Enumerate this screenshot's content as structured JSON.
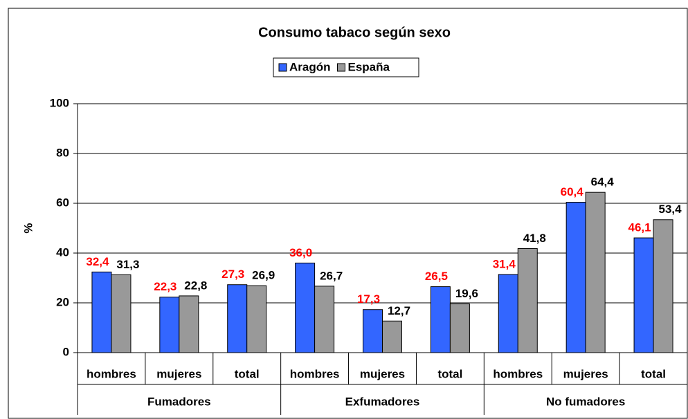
{
  "chart_data": {
    "type": "bar",
    "title": "Consumo tabaco según sexo",
    "y_label": "%",
    "categories": [
      "hombres",
      "mujeres",
      "total",
      "hombres",
      "mujeres",
      "total",
      "hombres",
      "mujeres",
      "total"
    ],
    "groups": [
      "Fumadores",
      "Exfumadores",
      "No fumadores"
    ],
    "series": [
      {
        "name": "Aragón",
        "color": "#3366ff",
        "label_color": "#ff0000",
        "values": [
          32.4,
          22.3,
          27.3,
          36.0,
          17.3,
          26.5,
          31.4,
          60.4,
          46.1
        ],
        "value_labels": [
          "32,4",
          "22,3",
          "27,3",
          "36,0",
          "17,3",
          "26,5",
          "31,4",
          "60,4",
          "46,1"
        ]
      },
      {
        "name": "España",
        "color": "#999999",
        "label_color": "#000000",
        "values": [
          31.3,
          22.8,
          26.9,
          26.7,
          12.7,
          19.6,
          41.8,
          64.4,
          53.4
        ],
        "value_labels": [
          "31,3",
          "22,8",
          "26,9",
          "26,7",
          "12,7",
          "19,6",
          "41,8",
          "64,4",
          "53,4"
        ]
      }
    ],
    "ylim": [
      0,
      100
    ],
    "yticks": [
      0,
      20,
      40,
      60,
      80,
      100
    ],
    "grid": true,
    "legend": "top"
  }
}
